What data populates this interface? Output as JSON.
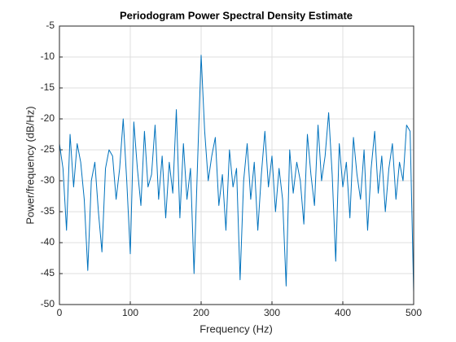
{
  "chart_data": {
    "type": "line",
    "title": "Periodogram Power Spectral Density Estimate",
    "x_label": "Frequency (Hz)",
    "y_label": "Power/frequency (dB/Hz)",
    "x": [
      0,
      5,
      10,
      15,
      20,
      25,
      30,
      35,
      40,
      45,
      50,
      55,
      60,
      65,
      70,
      75,
      80,
      85,
      90,
      95,
      100,
      105,
      110,
      115,
      120,
      125,
      130,
      135,
      140,
      145,
      150,
      155,
      160,
      165,
      170,
      175,
      180,
      185,
      190,
      195,
      200,
      205,
      210,
      215,
      220,
      225,
      230,
      235,
      240,
      245,
      250,
      255,
      260,
      265,
      270,
      275,
      280,
      285,
      290,
      295,
      300,
      305,
      310,
      315,
      320,
      325,
      330,
      335,
      340,
      345,
      350,
      355,
      360,
      365,
      370,
      375,
      380,
      385,
      390,
      395,
      400,
      405,
      410,
      415,
      420,
      425,
      430,
      435,
      440,
      445,
      450,
      455,
      460,
      465,
      470,
      475,
      480,
      485,
      490,
      495,
      500
    ],
    "series": [
      {
        "color": "#0072bd",
        "values": [
          -24,
          -28,
          -38,
          -22.5,
          -31,
          -24,
          -27,
          -33,
          -44.5,
          -30,
          -27,
          -35,
          -41.5,
          -28,
          -25,
          -26,
          -33,
          -28,
          -20,
          -30,
          -41.8,
          -20.5,
          -28,
          -34,
          -22,
          -31,
          -29,
          -21,
          -33,
          -26,
          -36,
          -27,
          -32,
          -18.5,
          -36,
          -24,
          -33,
          -28,
          -45,
          -27,
          -9.7,
          -22,
          -30,
          -26,
          -23,
          -34,
          -29,
          -38,
          -25,
          -31,
          -28,
          -46,
          -30,
          -24,
          -33,
          -27,
          -38,
          -29,
          -22,
          -31,
          -26,
          -35,
          -28,
          -33,
          -47,
          -25,
          -32,
          -27,
          -30,
          -37,
          -22.5,
          -29,
          -34,
          -21,
          -30,
          -26,
          -19,
          -29,
          -43,
          -24,
          -31,
          -27,
          -36,
          -23,
          -29,
          -33,
          -25,
          -38,
          -28,
          -22,
          -32,
          -26,
          -35,
          -28,
          -24,
          -33,
          -27,
          -30,
          -21,
          -22,
          -48
        ]
      }
    ],
    "xlim": [
      0,
      500
    ],
    "xticks": [
      0,
      100,
      200,
      300,
      400,
      500
    ],
    "ylim": [
      -50,
      -5
    ],
    "yticks": [
      -50,
      -45,
      -40,
      -35,
      -30,
      -25,
      -20,
      -15,
      -10,
      -5
    ],
    "grid": true
  }
}
